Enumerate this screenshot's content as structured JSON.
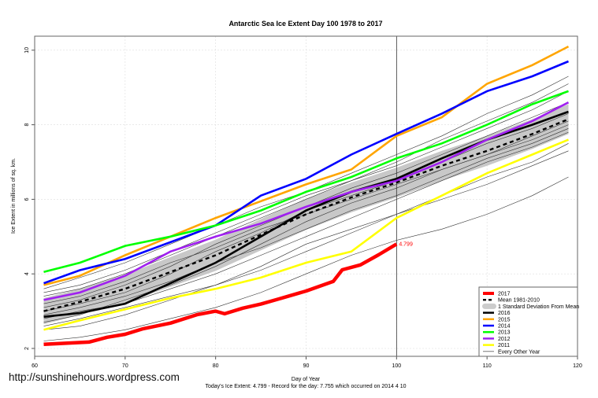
{
  "chart_data": {
    "type": "line",
    "title": "Antarctic Sea Ice Extent Day 100 1978 to 2017",
    "xlabel": "Day of Year",
    "ylabel": "Ice Extent in millions of sq. km.",
    "xlim": [
      60,
      120
    ],
    "ylim": [
      2,
      10
    ],
    "xticks": [
      "60",
      "70",
      "80",
      "90",
      "100",
      "110",
      "120"
    ],
    "yticks": [
      "2",
      "4",
      "6",
      "8",
      "10"
    ],
    "grid": true,
    "vline_x": 100,
    "legend_position": "bottom-right",
    "x": [
      61,
      65,
      70,
      75,
      80,
      85,
      90,
      95,
      100,
      105,
      110,
      115,
      119
    ],
    "current": {
      "name": "2017",
      "color": "#ff0000",
      "x": [
        61,
        66,
        68,
        70,
        72,
        75,
        78,
        80,
        81,
        83,
        85,
        87,
        90,
        93,
        94,
        96,
        98,
        100
      ],
      "values": [
        2.11,
        2.17,
        2.3,
        2.38,
        2.53,
        2.68,
        2.91,
        3.0,
        2.93,
        3.08,
        3.19,
        3.33,
        3.54,
        3.8,
        4.11,
        4.24,
        4.51,
        4.799
      ],
      "label": "4.799"
    },
    "mean": {
      "name": "Mean 1981-2010",
      "values": [
        3.0,
        3.25,
        3.6,
        4.05,
        4.5,
        5.05,
        5.6,
        6.05,
        6.45,
        6.9,
        7.3,
        7.75,
        8.15
      ]
    },
    "sd_band": {
      "name": "1 Standard Deviation From Mean",
      "half_width": [
        0.35,
        0.35,
        0.38,
        0.4,
        0.42,
        0.42,
        0.42,
        0.4,
        0.4,
        0.4,
        0.4,
        0.4,
        0.4
      ]
    },
    "series": [
      {
        "name": "2016",
        "color": "#000000",
        "values": [
          2.85,
          2.95,
          3.2,
          3.75,
          4.3,
          5.0,
          5.7,
          6.2,
          6.55,
          7.1,
          7.6,
          8.0,
          8.35
        ]
      },
      {
        "name": "2015",
        "color": "#ffa500",
        "values": [
          3.7,
          3.95,
          4.5,
          5.0,
          5.5,
          5.95,
          6.4,
          6.8,
          7.7,
          8.2,
          9.1,
          9.6,
          10.1
        ]
      },
      {
        "name": "2014",
        "color": "#0000ff",
        "values": [
          3.75,
          4.1,
          4.4,
          4.85,
          5.3,
          6.1,
          6.55,
          7.2,
          7.755,
          8.3,
          8.9,
          9.3,
          9.7
        ]
      },
      {
        "name": "2013",
        "color": "#00ff00",
        "values": [
          4.05,
          4.3,
          4.75,
          5.0,
          5.3,
          5.7,
          6.2,
          6.6,
          7.1,
          7.5,
          8.0,
          8.55,
          8.9
        ]
      },
      {
        "name": "2012",
        "color": "#a020f0",
        "values": [
          3.3,
          3.5,
          3.95,
          4.6,
          5.0,
          5.35,
          5.8,
          6.2,
          6.5,
          7.0,
          7.6,
          8.1,
          8.6
        ]
      },
      {
        "name": "2011",
        "color": "#ffff00",
        "values": [
          2.5,
          2.75,
          3.05,
          3.35,
          3.6,
          3.9,
          4.3,
          4.6,
          5.5,
          6.1,
          6.7,
          7.2,
          7.6
        ]
      }
    ],
    "other_years": {
      "name": "Every Other Year",
      "values": [
        [
          2.6,
          2.8,
          3.1,
          3.4,
          3.7,
          4.1,
          4.6,
          5.1,
          5.6,
          6.0,
          6.4,
          6.9,
          7.3
        ],
        [
          2.7,
          2.9,
          3.3,
          3.7,
          4.2,
          4.8,
          5.4,
          5.9,
          6.3,
          6.8,
          7.2,
          7.6,
          8.0
        ],
        [
          3.0,
          3.2,
          3.5,
          4.0,
          4.6,
          5.1,
          5.7,
          6.1,
          6.5,
          7.0,
          7.5,
          7.9,
          8.3
        ],
        [
          3.1,
          3.3,
          3.7,
          4.2,
          4.8,
          5.3,
          5.8,
          6.3,
          6.7,
          7.2,
          7.7,
          8.2,
          8.6
        ],
        [
          3.4,
          3.6,
          4.0,
          4.5,
          5.0,
          5.5,
          6.0,
          6.5,
          6.9,
          7.4,
          7.9,
          8.4,
          8.9
        ],
        [
          3.6,
          3.9,
          4.3,
          4.8,
          5.3,
          5.8,
          6.2,
          6.7,
          7.2,
          7.7,
          8.3,
          8.8,
          9.3
        ],
        [
          2.9,
          3.1,
          3.4,
          3.8,
          4.3,
          4.7,
          5.2,
          5.7,
          6.1,
          6.6,
          7.1,
          7.5,
          7.9
        ],
        [
          2.5,
          2.6,
          2.9,
          3.3,
          3.7,
          4.2,
          4.8,
          5.2,
          5.6,
          6.1,
          6.6,
          7.0,
          7.5
        ],
        [
          3.2,
          3.4,
          3.8,
          4.3,
          4.7,
          5.2,
          5.6,
          6.0,
          6.4,
          6.8,
          7.2,
          7.7,
          8.1
        ],
        [
          2.2,
          2.3,
          2.5,
          2.8,
          3.1,
          3.5,
          4.0,
          4.5,
          4.9,
          5.2,
          5.6,
          6.1,
          6.6
        ],
        [
          3.5,
          3.7,
          4.1,
          4.6,
          5.1,
          5.6,
          6.1,
          6.5,
          7.0,
          7.6,
          8.1,
          8.6,
          9.1
        ],
        [
          2.8,
          3.0,
          3.2,
          3.6,
          4.0,
          4.5,
          5.0,
          5.5,
          6.0,
          6.5,
          7.0,
          7.4,
          7.8
        ]
      ]
    }
  },
  "legend": [
    "2017",
    "Mean 1981-2010",
    "1 Standard Deviation From Mean",
    "2016",
    "2015",
    "2014",
    "2013",
    "2012",
    "2011",
    "Every Other Year"
  ],
  "footer": {
    "url": "http://sunshinehours.wordpress.com",
    "note": "Today's Ice Extent: 4.799  - Record for the day: 7.755 which occurred on 2014 4 10"
  }
}
